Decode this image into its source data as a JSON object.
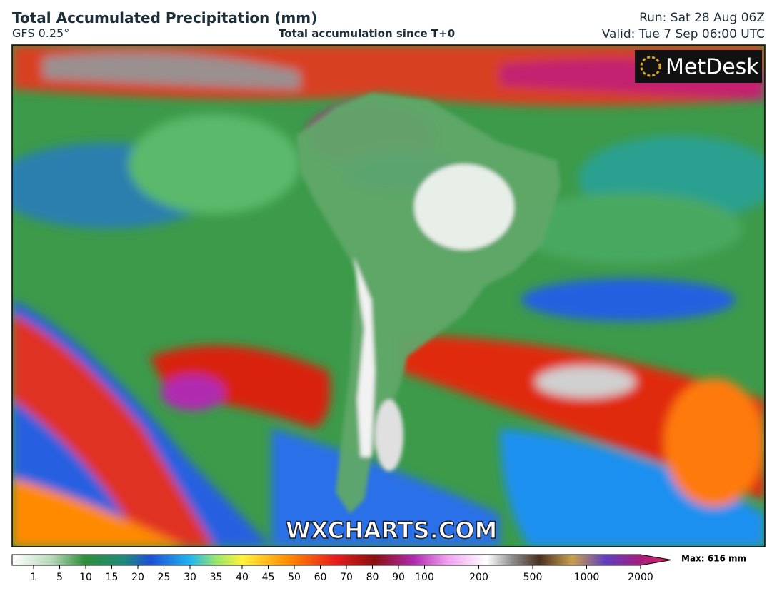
{
  "header": {
    "title": "Total Accumulated Precipitation (mm)",
    "model": "GFS 0.25°",
    "subtitle": "Total accumulation since T+0",
    "run": "Run: Sat 28 Aug 06Z",
    "valid": "Valid: Tue 7 Sep 06:00 UTC"
  },
  "logo": "MetDesk",
  "watermark": "WXCHARTS.COM",
  "legend": {
    "ticks": [
      1,
      5,
      10,
      15,
      20,
      25,
      30,
      35,
      40,
      45,
      50,
      60,
      70,
      80,
      90,
      100,
      200,
      500,
      1000,
      2000
    ],
    "max": "Max: 616 mm"
  }
}
